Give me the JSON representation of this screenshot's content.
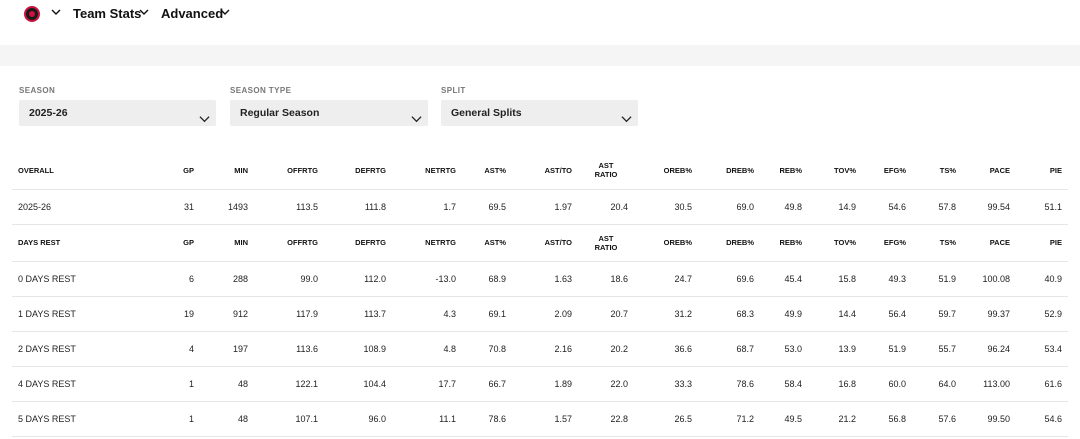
{
  "nav": {
    "team_stats": "Team Stats",
    "advanced": "Advanced"
  },
  "filters": {
    "season": {
      "label": "SEASON",
      "value": "2025-26"
    },
    "season_type": {
      "label": "SEASON TYPE",
      "value": "Regular Season"
    },
    "split": {
      "label": "SPLIT",
      "value": "General Splits"
    }
  },
  "overall": {
    "headers": [
      "OVERALL",
      "GP",
      "MIN",
      "OFFRTG",
      "DEFRTG",
      "NETRTG",
      "AST%",
      "AST/TO",
      "AST RATIO",
      "OREB%",
      "DREB%",
      "REB%",
      "TOV%",
      "EFG%",
      "TS%",
      "PACE",
      "PIE"
    ],
    "rows": [
      [
        "2025-26",
        "31",
        "1493",
        "113.5",
        "111.8",
        "1.7",
        "69.5",
        "1.97",
        "20.4",
        "30.5",
        "69.0",
        "49.8",
        "14.9",
        "54.6",
        "57.8",
        "99.54",
        "51.1"
      ]
    ]
  },
  "days_rest": {
    "headers": [
      "DAYS REST",
      "GP",
      "MIN",
      "OFFRTG",
      "DEFRTG",
      "NETRTG",
      "AST%",
      "AST/TO",
      "AST RATIO",
      "OREB%",
      "DREB%",
      "REB%",
      "TOV%",
      "EFG%",
      "TS%",
      "PACE",
      "PIE"
    ],
    "rows": [
      [
        "0 DAYS REST",
        "6",
        "288",
        "99.0",
        "112.0",
        "-13.0",
        "68.9",
        "1.63",
        "18.6",
        "24.7",
        "69.6",
        "45.4",
        "15.8",
        "49.3",
        "51.9",
        "100.08",
        "40.9"
      ],
      [
        "1 DAYS REST",
        "19",
        "912",
        "117.9",
        "113.7",
        "4.3",
        "69.1",
        "2.09",
        "20.7",
        "31.2",
        "68.3",
        "49.9",
        "14.4",
        "56.4",
        "59.7",
        "99.37",
        "52.9"
      ],
      [
        "2 DAYS REST",
        "4",
        "197",
        "113.6",
        "108.9",
        "4.8",
        "70.8",
        "2.16",
        "20.2",
        "36.6",
        "68.7",
        "53.0",
        "13.9",
        "51.9",
        "55.7",
        "96.24",
        "53.4"
      ],
      [
        "4 DAYS REST",
        "1",
        "48",
        "122.1",
        "104.4",
        "17.7",
        "66.7",
        "1.89",
        "22.0",
        "33.3",
        "78.6",
        "58.4",
        "16.8",
        "60.0",
        "64.0",
        "113.00",
        "61.6"
      ],
      [
        "5 DAYS REST",
        "1",
        "48",
        "107.1",
        "96.0",
        "11.1",
        "78.6",
        "1.57",
        "22.8",
        "26.5",
        "71.2",
        "49.5",
        "21.2",
        "56.8",
        "57.6",
        "99.50",
        "54.6"
      ]
    ]
  },
  "icons": {
    "team_logo": "team-logo-icon",
    "chevron": "chevron-down-icon"
  }
}
